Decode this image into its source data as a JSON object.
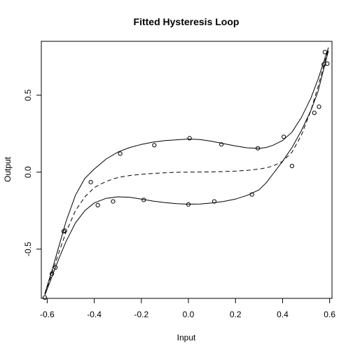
{
  "chart_data": {
    "type": "scatter",
    "title": "Fitted Hysteresis Loop",
    "xlabel": "Input",
    "ylabel": "Output",
    "xlim": [
      -0.625,
      0.61
    ],
    "ylim": [
      -0.82,
      0.85
    ],
    "xticks": [
      -0.6,
      -0.4,
      -0.2,
      0.0,
      0.2,
      0.4,
      0.6
    ],
    "xtick_labels": [
      "-0.6",
      "-0.4",
      "-0.2",
      "0.0",
      "0.2",
      "0.4",
      "0.6"
    ],
    "yticks": [
      -0.5,
      0.0,
      0.5
    ],
    "ytick_labels": [
      "-0.5",
      "0.0",
      "0.5"
    ],
    "grid": false,
    "points": {
      "x": [
        -0.61,
        -0.58,
        -0.565,
        -0.53,
        -0.525,
        -0.415,
        -0.385,
        -0.32,
        -0.29,
        -0.19,
        -0.145,
        0.005,
        0.0,
        0.11,
        0.14,
        0.27,
        0.295,
        0.405,
        0.44,
        0.535,
        0.555,
        0.575,
        0.58,
        0.59
      ],
      "y": [
        -0.815,
        -0.66,
        -0.62,
        -0.385,
        -0.38,
        -0.065,
        -0.215,
        -0.19,
        0.12,
        -0.18,
        0.175,
        0.22,
        -0.21,
        -0.19,
        0.18,
        -0.145,
        0.155,
        0.23,
        0.04,
        0.385,
        0.425,
        0.7,
        0.78,
        0.705
      ]
    },
    "series": [
      {
        "style": "solid",
        "x": [
          -0.61,
          -0.58,
          -0.55,
          -0.52,
          -0.48,
          -0.44,
          -0.4,
          -0.35,
          -0.3,
          -0.25,
          -0.2,
          -0.15,
          -0.1,
          -0.05,
          0.0,
          0.05,
          0.1,
          0.15,
          0.2,
          0.25,
          0.3,
          0.33,
          0.36,
          0.4,
          0.44,
          0.48,
          0.52,
          0.55,
          0.58,
          0.595
        ],
        "y": [
          -0.79,
          -0.64,
          -0.48,
          -0.32,
          -0.15,
          -0.04,
          0.02,
          0.085,
          0.13,
          0.16,
          0.18,
          0.195,
          0.205,
          0.21,
          0.215,
          0.212,
          0.2,
          0.185,
          0.17,
          0.158,
          0.155,
          0.16,
          0.175,
          0.205,
          0.26,
          0.355,
          0.48,
          0.6,
          0.74,
          0.81
        ]
      },
      {
        "style": "dashed",
        "x": [
          -0.61,
          -0.58,
          -0.55,
          -0.52,
          -0.48,
          -0.44,
          -0.4,
          -0.35,
          -0.3,
          -0.25,
          -0.2,
          -0.15,
          -0.1,
          -0.05,
          0.0,
          0.05,
          0.1,
          0.15,
          0.2,
          0.25,
          0.3,
          0.33,
          0.36,
          0.4,
          0.44,
          0.48,
          0.52,
          0.55,
          0.58,
          0.595
        ],
        "y": [
          -0.79,
          -0.66,
          -0.52,
          -0.39,
          -0.25,
          -0.16,
          -0.1,
          -0.06,
          -0.035,
          -0.022,
          -0.014,
          -0.008,
          -0.004,
          -0.001,
          0.0,
          0.001,
          0.002,
          0.004,
          0.007,
          0.012,
          0.02,
          0.028,
          0.04,
          0.07,
          0.13,
          0.24,
          0.4,
          0.55,
          0.72,
          0.8
        ]
      },
      {
        "style": "solid",
        "x": [
          -0.61,
          -0.58,
          -0.55,
          -0.52,
          -0.48,
          -0.44,
          -0.4,
          -0.35,
          -0.3,
          -0.25,
          -0.2,
          -0.15,
          -0.1,
          -0.05,
          0.0,
          0.05,
          0.1,
          0.15,
          0.2,
          0.25,
          0.3,
          0.33,
          0.36,
          0.4,
          0.44,
          0.48,
          0.52,
          0.55,
          0.58,
          0.595
        ],
        "y": [
          -0.8,
          -0.68,
          -0.56,
          -0.45,
          -0.33,
          -0.25,
          -0.2,
          -0.17,
          -0.16,
          -0.163,
          -0.175,
          -0.188,
          -0.198,
          -0.205,
          -0.208,
          -0.207,
          -0.2,
          -0.19,
          -0.175,
          -0.15,
          -0.115,
          -0.07,
          -0.01,
          0.07,
          0.16,
          0.27,
          0.4,
          0.52,
          0.7,
          0.79
        ]
      }
    ]
  }
}
